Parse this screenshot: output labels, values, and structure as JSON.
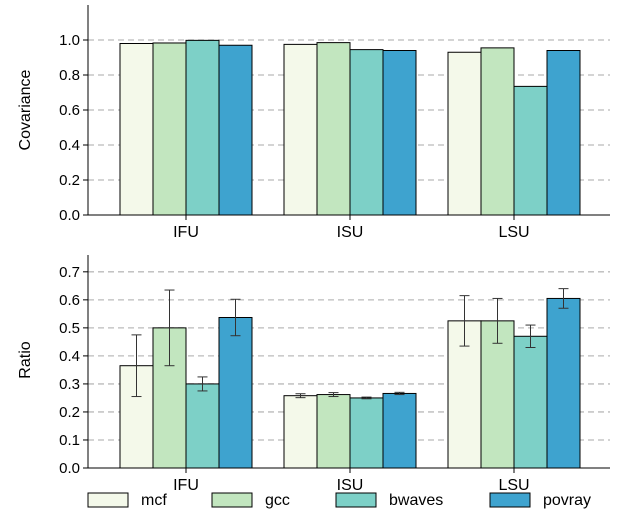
{
  "legend": {
    "entries": [
      {
        "name": "mcf",
        "color": "#f4f9ea"
      },
      {
        "name": "gcc",
        "color": "#c2e6bf"
      },
      {
        "name": "bwaves",
        "color": "#7dd0c7"
      },
      {
        "name": "povray",
        "color": "#3ea3cf"
      }
    ],
    "placement": "bottom"
  },
  "chart_data": [
    {
      "type": "bar",
      "title": "",
      "xlabel": "",
      "ylabel": "Covariance",
      "categories": [
        "IFU",
        "ISU",
        "LSU"
      ],
      "ylim": [
        0,
        1.2
      ],
      "yticks": [
        "0.0",
        "0.2",
        "0.4",
        "0.6",
        "0.8",
        "1.0"
      ],
      "grid": true,
      "series": [
        {
          "name": "mcf",
          "values": [
            0.98,
            0.975,
            0.93
          ]
        },
        {
          "name": "gcc",
          "values": [
            0.983,
            0.985,
            0.955
          ]
        },
        {
          "name": "bwaves",
          "values": [
            0.998,
            0.945,
            0.735
          ]
        },
        {
          "name": "povray",
          "values": [
            0.97,
            0.94,
            0.94
          ]
        }
      ]
    },
    {
      "type": "bar",
      "title": "",
      "xlabel": "",
      "ylabel": "Ratio",
      "categories": [
        "IFU",
        "ISU",
        "LSU"
      ],
      "ylim": [
        0,
        0.76
      ],
      "yticks": [
        "0.0",
        "0.1",
        "0.2",
        "0.3",
        "0.4",
        "0.5",
        "0.6",
        "0.7"
      ],
      "grid": true,
      "series": [
        {
          "name": "mcf",
          "values": [
            0.365,
            0.258,
            0.525
          ],
          "error": [
            0.11,
            0.007,
            0.09
          ]
        },
        {
          "name": "gcc",
          "values": [
            0.5,
            0.262,
            0.525
          ],
          "error": [
            0.135,
            0.007,
            0.08
          ]
        },
        {
          "name": "bwaves",
          "values": [
            0.3,
            0.25,
            0.47
          ],
          "error": [
            0.025,
            0.003,
            0.04
          ]
        },
        {
          "name": "povray",
          "values": [
            0.537,
            0.266,
            0.605
          ],
          "error": [
            0.065,
            0.004,
            0.035
          ]
        }
      ]
    }
  ]
}
